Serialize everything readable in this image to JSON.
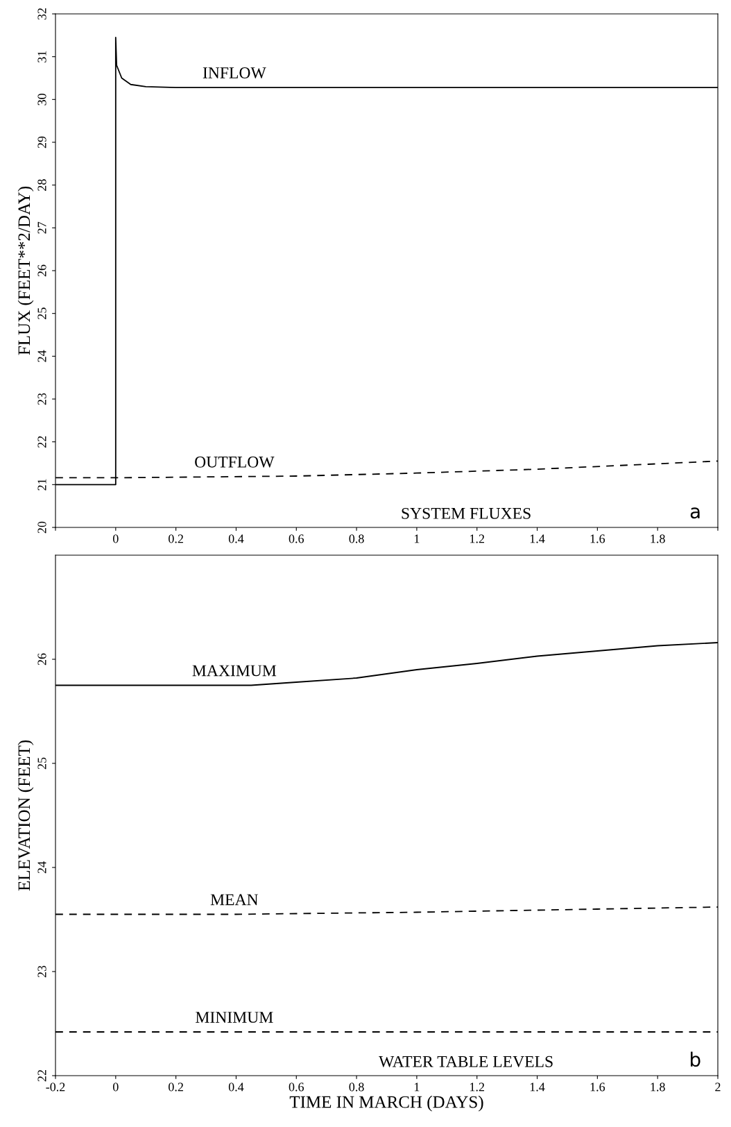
{
  "chart_data": [
    {
      "type": "line",
      "ylabel": "FLUX (FEET**2/DAY)",
      "annotations": [
        "SYSTEM FLUXES",
        "a"
      ],
      "xlim": [
        -0.2,
        2
      ],
      "xticks": [
        {
          "value": -0.2,
          "label": null
        },
        0,
        0.2,
        0.4,
        0.6,
        0.8,
        1,
        1.2,
        1.4,
        1.6,
        1.8,
        {
          "value": 2,
          "label": null
        }
      ],
      "ylim": [
        20,
        32
      ],
      "yticks": [
        20,
        21,
        22,
        23,
        24,
        25,
        26,
        27,
        28,
        29,
        30,
        31,
        32
      ],
      "grid": false,
      "legend": false,
      "series": [
        {
          "name": "INFLOW",
          "color": "#000000",
          "line_style": "solid",
          "x": [
            -0.2,
            0,
            0,
            0.003,
            0.02,
            0.05,
            0.1,
            0.2,
            2
          ],
          "values": [
            21.0,
            21.0,
            31.45,
            30.8,
            30.5,
            30.35,
            30.3,
            30.28,
            30.28
          ]
        },
        {
          "name": "OUTFLOW",
          "color": "#000000",
          "line_style": "dashed",
          "x": [
            -0.2,
            0,
            0.6,
            1,
            1.4,
            2
          ],
          "values": [
            21.16,
            21.16,
            21.2,
            21.27,
            21.36,
            21.55
          ]
        }
      ]
    },
    {
      "type": "line",
      "xlabel": "TIME IN MARCH (DAYS)",
      "ylabel": "ELEVATION (FEET)",
      "annotations": [
        "WATER TABLE LEVELS",
        "b"
      ],
      "xlim": [
        -0.2,
        2
      ],
      "xticks": [
        -0.2,
        0,
        0.2,
        0.4,
        0.6,
        0.8,
        1,
        1.2,
        1.4,
        1.6,
        1.8,
        2
      ],
      "ylim": [
        22,
        27
      ],
      "yticks": [
        22,
        23,
        24,
        25,
        26
      ],
      "grid": false,
      "legend": false,
      "series": [
        {
          "name": "MAXIMUM",
          "color": "#000000",
          "line_style": "solid",
          "x": [
            -0.2,
            0.45,
            0.6,
            0.8,
            1.0,
            1.2,
            1.4,
            1.6,
            1.8,
            2
          ],
          "values": [
            25.75,
            25.75,
            25.78,
            25.82,
            25.9,
            25.96,
            26.03,
            26.08,
            26.13,
            26.16
          ]
        },
        {
          "name": "MEAN",
          "color": "#000000",
          "line_style": "dashed",
          "x": [
            -0.2,
            0.4,
            1.0,
            1.6,
            2
          ],
          "values": [
            23.55,
            23.55,
            23.57,
            23.6,
            23.62
          ]
        },
        {
          "name": "MINIMUM",
          "color": "#000000",
          "line_style": "dashed",
          "x": [
            -0.2,
            2
          ],
          "values": [
            22.42,
            22.42
          ]
        }
      ]
    }
  ]
}
